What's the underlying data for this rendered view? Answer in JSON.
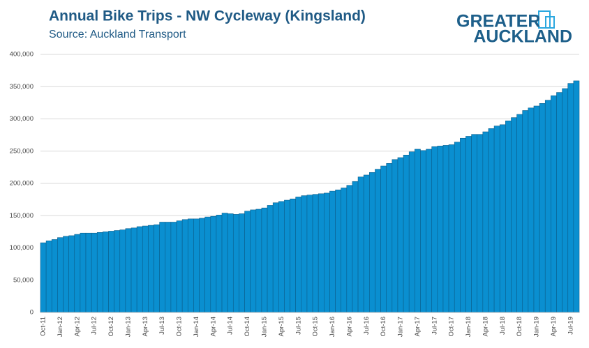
{
  "chart_data": {
    "type": "bar",
    "title": "Annual Bike Trips - NW Cycleway (Kingsland)",
    "subtitle": "Source: Auckland Transport",
    "logo": [
      "GREATER",
      "AUCKLAND"
    ],
    "color": "#0a8fd0",
    "edge_color": "#0b5e8c",
    "grid": true,
    "categories": [
      "Oct-11",
      null,
      null,
      "Jan-12",
      null,
      null,
      "Apr-12",
      null,
      null,
      "Jul-12",
      null,
      null,
      "Oct-12",
      null,
      null,
      "Jan-13",
      null,
      null,
      "Apr-13",
      null,
      null,
      "Jul-13",
      null,
      null,
      "Oct-13",
      null,
      null,
      "Jan-14",
      null,
      null,
      "Apr-14",
      null,
      null,
      "Jul-14",
      null,
      null,
      "Oct-14",
      null,
      null,
      "Jan-15",
      null,
      null,
      "Apr-15",
      null,
      null,
      "Jul-15",
      null,
      null,
      "Oct-15",
      null,
      null,
      "Jan-16",
      null,
      null,
      "Apr-16",
      null,
      null,
      "Jul-16",
      null,
      null,
      "Oct-16",
      null,
      null,
      "Jan-17",
      null,
      null,
      "Apr-17",
      null,
      null,
      "Jul-17",
      null,
      null,
      "Oct-17",
      null,
      null,
      "Jan-18",
      null,
      null,
      "Apr-18",
      null,
      null,
      "Jul-18",
      null,
      null,
      "Oct-18",
      null,
      null,
      "Jan-19",
      null,
      null,
      "Apr-19",
      null,
      null,
      "Jul-19",
      null
    ],
    "values": [
      108000,
      111000,
      113000,
      116000,
      118000,
      119000,
      121000,
      123000,
      123000,
      123000,
      124000,
      125000,
      126000,
      127000,
      128000,
      130000,
      131000,
      133000,
      134000,
      135000,
      136000,
      140000,
      140000,
      140000,
      142000,
      144000,
      145000,
      145000,
      146000,
      148000,
      149000,
      151000,
      154000,
      153000,
      152000,
      153000,
      157000,
      159000,
      160000,
      162000,
      166000,
      170000,
      172000,
      174000,
      176000,
      179000,
      181000,
      182000,
      183000,
      184000,
      185000,
      188000,
      190000,
      193000,
      197000,
      203000,
      210000,
      213000,
      217000,
      222000,
      227000,
      231000,
      237000,
      240000,
      244000,
      249000,
      253000,
      251000,
      253000,
      257000,
      258000,
      259000,
      260000,
      264000,
      270000,
      273000,
      276000,
      276000,
      280000,
      285000,
      289000,
      291000,
      297000,
      302000,
      307000,
      313000,
      317000,
      320000,
      324000,
      329000,
      336000,
      341000,
      347000,
      355000,
      359000
    ],
    "ylim": [
      0,
      400000
    ],
    "yticks": [
      0,
      {
        "value": 50000,
        "label": "50,000"
      },
      {
        "value": 100000,
        "label": "100,000"
      },
      {
        "value": 150000,
        "label": "150,000"
      },
      {
        "value": 200000,
        "label": "200,000"
      },
      {
        "value": 250000,
        "label": "250,000"
      },
      {
        "value": 300000,
        "label": "300,000"
      },
      {
        "value": 350000,
        "label": "350,000"
      },
      {
        "value": 400000,
        "label": "400,000"
      }
    ]
  }
}
